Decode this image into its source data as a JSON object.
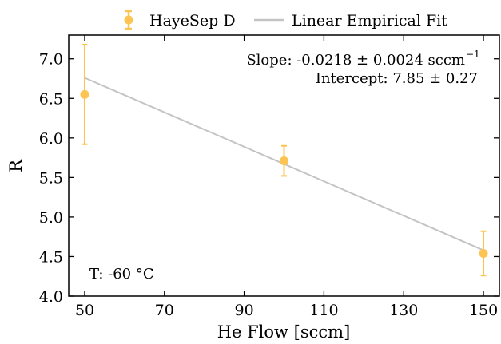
{
  "chart_data": {
    "type": "scatter",
    "xlabel": "He Flow [sccm]",
    "ylabel": "R",
    "xlim": [
      46,
      154
    ],
    "ylim": [
      4.0,
      7.3
    ],
    "xticks": [
      50,
      70,
      90,
      110,
      130,
      150
    ],
    "yticks": [
      4.0,
      4.5,
      5.0,
      5.5,
      6.0,
      6.5,
      7.0
    ],
    "xtick_labels": [
      "50",
      "70",
      "90",
      "110",
      "130",
      "150"
    ],
    "ytick_labels": [
      "4.0",
      "4.5",
      "5.0",
      "5.5",
      "6.0",
      "6.5",
      "7.0"
    ],
    "grid": false,
    "legend_position": "top-center, outside plot",
    "series": [
      {
        "name": "HayeSep D",
        "kind": "errorbar",
        "color": "#FDC453",
        "x": [
          50,
          100,
          150
        ],
        "y": [
          6.55,
          5.71,
          4.54
        ],
        "yerr": [
          0.63,
          0.19,
          0.28
        ]
      },
      {
        "name": "Linear Empirical Fit",
        "kind": "line",
        "color": "#C4C4C4",
        "x": [
          50,
          150
        ],
        "y": [
          6.76,
          4.58
        ]
      }
    ],
    "annotations": {
      "slope": "Slope: -0.0218 ± 0.0024 sccm",
      "slope_sup": "−1",
      "intercept": "Intercept: 7.85 ± 0.27",
      "temperature": "T: -60 °C"
    }
  }
}
